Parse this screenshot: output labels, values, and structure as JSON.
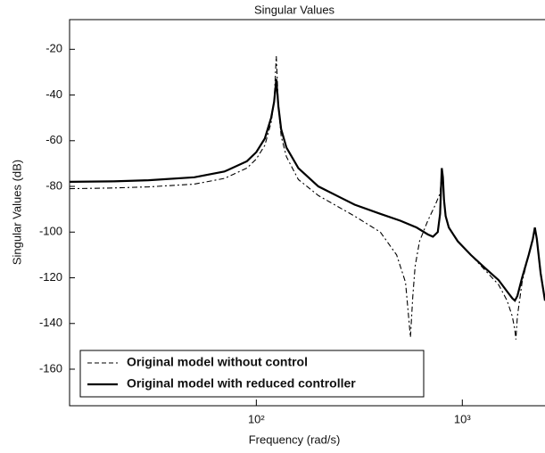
{
  "chart_data": {
    "type": "line",
    "title": "Singular Values",
    "xlabel": "Frequency (rad/s)",
    "ylabel": "Singular Values (dB)",
    "xscale": "log",
    "xlim": [
      12.4,
      2520
    ],
    "xticks": [
      {
        "value": 100,
        "label": "10²"
      },
      {
        "value": 1000,
        "label": "10³"
      }
    ],
    "ylim": [
      -176,
      -7
    ],
    "yticks": [
      -20,
      -40,
      -60,
      -80,
      -100,
      -120,
      -140,
      -160
    ],
    "legend": "lower left",
    "series": [
      {
        "name": "Original model without control",
        "color": "#000000",
        "style": "dashdot",
        "x": [
          12.4,
          20,
          30,
          50,
          70,
          90,
          100,
          110,
          118,
          122,
          125,
          128,
          132,
          140,
          160,
          200,
          300,
          400,
          480,
          530,
          560,
          575,
          590,
          620,
          680,
          740,
          780,
          795,
          805,
          815,
          830,
          860,
          950,
          1100,
          1300,
          1500,
          1650,
          1750,
          1800,
          1820,
          1850,
          1950,
          2100,
          2200,
          2250,
          2300,
          2400,
          2520
        ],
        "values": [
          -81,
          -80.7,
          -80.2,
          -79,
          -76.5,
          -72,
          -68,
          -62,
          -52,
          -43,
          -23,
          -45,
          -58,
          -67,
          -77,
          -84,
          -93,
          -100,
          -110,
          -122,
          -146,
          -128,
          -115,
          -104,
          -95,
          -88,
          -83,
          -74,
          -76,
          -86,
          -93,
          -98,
          -104,
          -110,
          -117,
          -123,
          -130,
          -137,
          -143,
          -147,
          -137,
          -122,
          -110,
          -103,
          -98,
          -103,
          -118,
          -130
        ]
      },
      {
        "name": "Original model with reduced controller",
        "color": "#000000",
        "style": "solid",
        "x": [
          12.4,
          20,
          30,
          50,
          70,
          90,
          100,
          110,
          118,
          122,
          125,
          128,
          132,
          140,
          160,
          200,
          300,
          400,
          500,
          600,
          680,
          720,
          760,
          780,
          795,
          805,
          815,
          830,
          860,
          950,
          1100,
          1300,
          1500,
          1650,
          1750,
          1800,
          1850,
          1950,
          2100,
          2200,
          2250,
          2300,
          2400,
          2520
        ],
        "values": [
          -78,
          -77.8,
          -77.3,
          -76,
          -73.5,
          -69,
          -65,
          -59,
          -50,
          -43,
          -33,
          -45,
          -55,
          -63,
          -72,
          -80,
          -88,
          -92,
          -95,
          -98,
          -101,
          -102,
          -100,
          -92,
          -72,
          -76,
          -86,
          -93,
          -98,
          -104,
          -110,
          -116,
          -121,
          -126,
          -129,
          -130,
          -128,
          -120,
          -110,
          -103,
          -98,
          -103,
          -118,
          -130
        ]
      }
    ]
  }
}
